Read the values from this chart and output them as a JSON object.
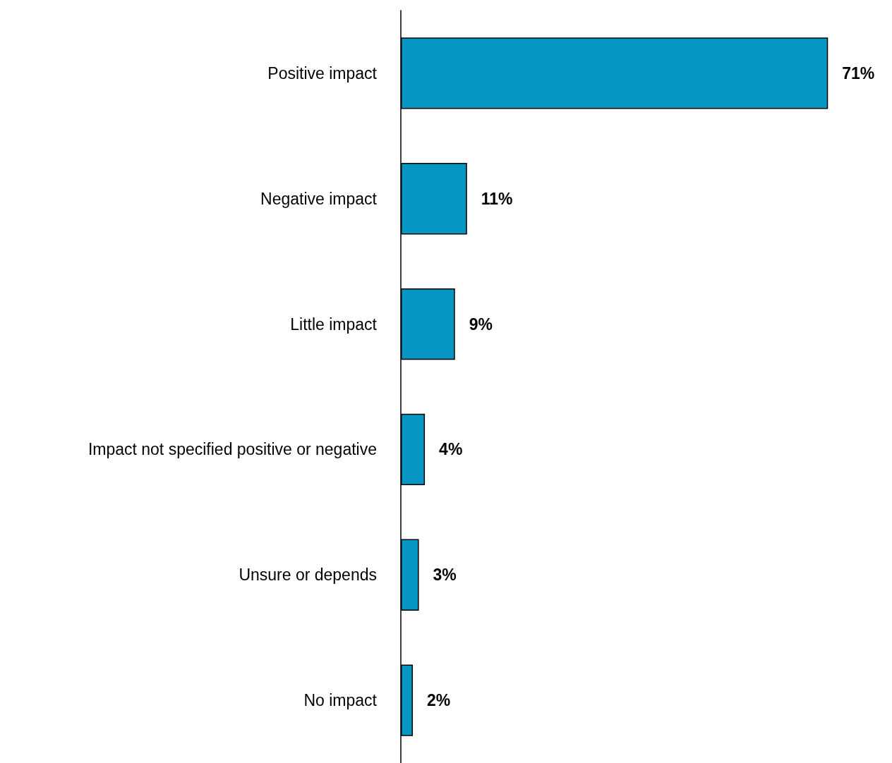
{
  "chart_data": {
    "type": "bar",
    "orientation": "horizontal",
    "categories": [
      "Positive impact",
      "Negative impact",
      "Little impact",
      "Impact not specified positive or negative",
      "Unsure or depends",
      "No impact"
    ],
    "values": [
      71,
      11,
      9,
      4,
      3,
      2
    ],
    "value_labels": [
      "71%",
      "11%",
      "9%",
      "4%",
      "3%",
      "2%"
    ],
    "color": "#0596c4"
  }
}
